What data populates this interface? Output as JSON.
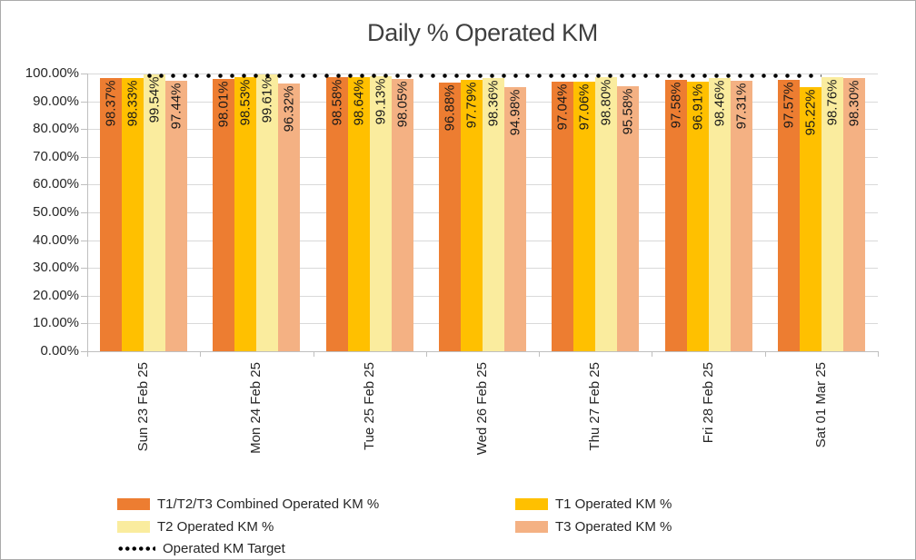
{
  "chart_data": {
    "type": "bar",
    "title": "Daily % Operated KM",
    "categories": [
      "Sun 23 Feb 25",
      "Mon 24 Feb 25",
      "Tue 25 Feb 25",
      "Wed 26 Feb 25",
      "Thu 27 Feb 25",
      "Fri 28 Feb 25",
      "Sat 01 Mar 25"
    ],
    "series": [
      {
        "id": "combined",
        "name": "T1/T2/T3 Combined Operated KM %",
        "color": "#ED7D31",
        "values": [
          98.37,
          98.01,
          98.58,
          96.88,
          97.04,
          97.58,
          97.57
        ]
      },
      {
        "id": "t1",
        "name": "T1 Operated KM %",
        "color": "#FFC000",
        "values": [
          98.33,
          98.53,
          98.64,
          97.79,
          97.06,
          96.91,
          95.22
        ]
      },
      {
        "id": "t2",
        "name": "T2 Operated KM %",
        "color": "#FAEC9E",
        "values": [
          99.54,
          99.61,
          99.13,
          98.36,
          98.8,
          98.46,
          98.76
        ]
      },
      {
        "id": "t3",
        "name": "T3 Operated KM %",
        "color": "#F4B183",
        "values": [
          97.44,
          96.32,
          98.05,
          94.98,
          95.58,
          97.31,
          98.3
        ]
      }
    ],
    "target_line": {
      "name": "Operated KM Target",
      "color": "#000000",
      "style": "dotted",
      "value_estimate": 99.0
    },
    "y_axis": {
      "min": 0,
      "max": 100,
      "step": 10,
      "format": "0.00%",
      "tick_labels": [
        "100.00%",
        "90.00%",
        "80.00%",
        "70.00%",
        "60.00%",
        "50.00%",
        "40.00%",
        "30.00%",
        "20.00%",
        "10.00%",
        "0.00%"
      ]
    },
    "data_labels": {
      "format": "0.00%",
      "rotation": -90,
      "position": "inside_end"
    },
    "x_axis_label_rotation": -90,
    "grid": true,
    "legend_position": "bottom",
    "colors": {
      "gridline": "#D9D9D9",
      "axis": "#BFBFBF",
      "tick_text": "#262626",
      "title_text": "#3F3F3F",
      "data_label_text": "#1A1A1A",
      "frame_border": "#ABABAB",
      "background": "#FFFFFF"
    }
  }
}
